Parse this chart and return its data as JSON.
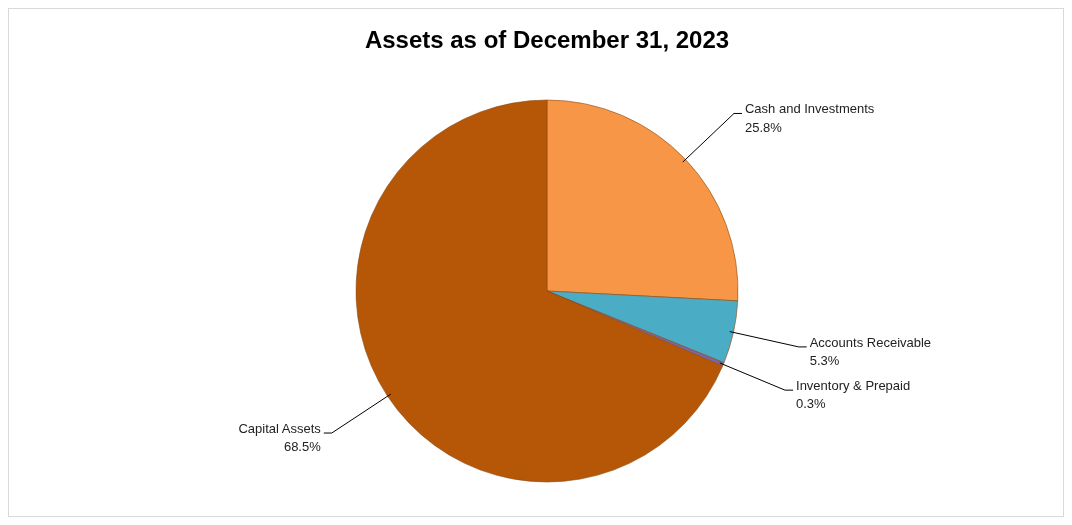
{
  "chart_data": {
    "type": "pie",
    "title": "Assets as of December 31, 2023",
    "categories": [
      "Cash and Investments",
      "Accounts Receivable",
      "Inventory & Prepaid",
      "Capital Assets"
    ],
    "values": [
      25.8,
      5.3,
      0.3,
      68.5
    ],
    "colors": [
      "#f79646",
      "#4bacc6",
      "#8064a2",
      "#b65708"
    ],
    "value_labels": [
      "25.8%",
      "5.3%",
      "0.3%",
      "68.5%"
    ]
  }
}
